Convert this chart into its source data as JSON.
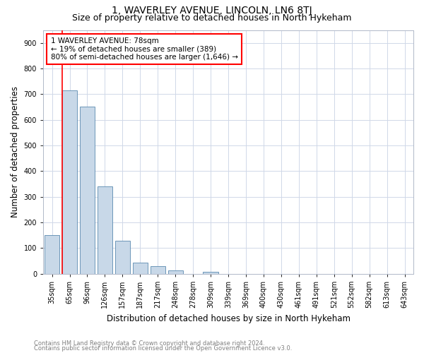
{
  "title": "1, WAVERLEY AVENUE, LINCOLN, LN6 8TJ",
  "subtitle": "Size of property relative to detached houses in North Hykeham",
  "xlabel": "Distribution of detached houses by size in North Hykeham",
  "ylabel": "Number of detached properties",
  "categories": [
    "35sqm",
    "65sqm",
    "96sqm",
    "126sqm",
    "157sqm",
    "187sqm",
    "217sqm",
    "248sqm",
    "278sqm",
    "309sqm",
    "339sqm",
    "369sqm",
    "400sqm",
    "430sqm",
    "461sqm",
    "491sqm",
    "521sqm",
    "552sqm",
    "582sqm",
    "613sqm",
    "643sqm"
  ],
  "values": [
    150,
    715,
    650,
    340,
    128,
    42,
    30,
    12,
    0,
    8,
    0,
    0,
    0,
    0,
    0,
    0,
    0,
    0,
    0,
    0,
    0
  ],
  "bar_color": "#c8d8e8",
  "bar_edge_color": "#5a8ab0",
  "grid_color": "#d0d8e8",
  "annotation_line1": "1 WAVERLEY AVENUE: 78sqm",
  "annotation_line2": "← 19% of detached houses are smaller (389)",
  "annotation_line3": "80% of semi-detached houses are larger (1,646) →",
  "ylim": [
    0,
    950
  ],
  "yticks": [
    0,
    100,
    200,
    300,
    400,
    500,
    600,
    700,
    800,
    900
  ],
  "footnote1": "Contains HM Land Registry data © Crown copyright and database right 2024.",
  "footnote2": "Contains public sector information licensed under the Open Government Licence v3.0.",
  "title_fontsize": 10,
  "subtitle_fontsize": 9,
  "tick_fontsize": 7,
  "ylabel_fontsize": 8.5,
  "xlabel_fontsize": 8.5,
  "annotation_fontsize": 7.5,
  "footnote_fontsize": 6,
  "red_line_x": 0.575
}
